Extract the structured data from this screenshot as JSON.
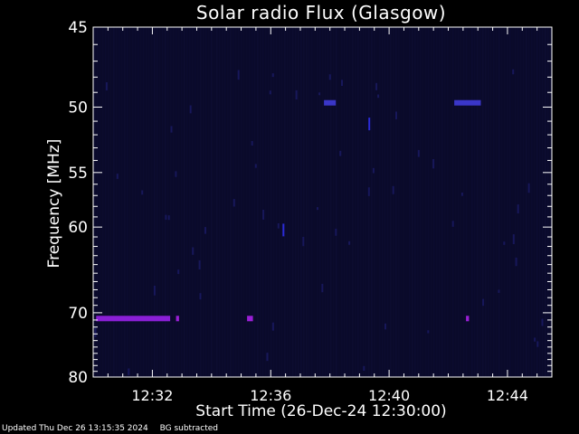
{
  "chart_data": {
    "type": "heatmap",
    "title": "Solar radio Flux (Glasgow)",
    "xlabel": "Start Time (26-Dec-24 12:30:00)",
    "ylabel": "Frequency [MHz]",
    "x_range_minutes": [
      0,
      15.5
    ],
    "y_range_mhz": [
      45,
      80
    ],
    "x_ticks": [
      {
        "minute": 2,
        "label": "12:32"
      },
      {
        "minute": 6,
        "label": "12:36"
      },
      {
        "minute": 10,
        "label": "12:40"
      },
      {
        "minute": 14,
        "label": "12:44"
      }
    ],
    "y_ticks": [
      45,
      50,
      55,
      60,
      70,
      80
    ],
    "background_color": "#0a0a2a",
    "features": [
      {
        "name": "band",
        "freq_mhz": 70.8,
        "t_start_min": 0.1,
        "t_end_min": 2.6,
        "color": "#8a1fd6"
      },
      {
        "name": "band",
        "freq_mhz": 70.8,
        "t_start_min": 2.8,
        "t_end_min": 2.9,
        "color": "#9a1fd6"
      },
      {
        "name": "band",
        "freq_mhz": 70.8,
        "t_start_min": 5.2,
        "t_end_min": 5.4,
        "color": "#9a1fd6"
      },
      {
        "name": "band",
        "freq_mhz": 70.8,
        "t_start_min": 12.6,
        "t_end_min": 12.7,
        "color": "#9a1fd6"
      },
      {
        "name": "band-faint",
        "freq_mhz": 49.7,
        "t_start_min": 7.8,
        "t_end_min": 8.2,
        "color": "#3a36c8"
      },
      {
        "name": "band-faint",
        "freq_mhz": 49.7,
        "t_start_min": 12.2,
        "t_end_min": 13.1,
        "color": "#3a36c8"
      },
      {
        "name": "spike",
        "freq_mhz": 60.3,
        "t_start_min": 6.4,
        "t_end_min": 6.45,
        "color": "#2b2bd8"
      },
      {
        "name": "spike",
        "freq_mhz": 51.2,
        "t_start_min": 9.3,
        "t_end_min": 9.35,
        "color": "#2b2bd8"
      }
    ]
  },
  "footer": {
    "updated": "Updated Thu Dec 26 13:15:35 2024",
    "bg_note": "BG subtracted"
  }
}
